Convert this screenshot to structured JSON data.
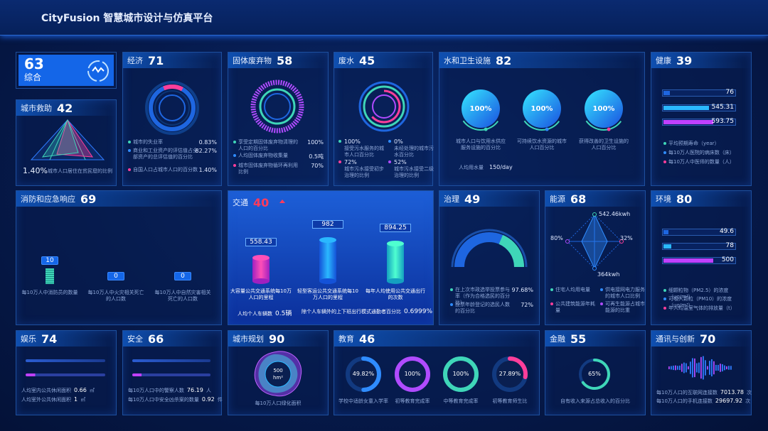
{
  "header": {
    "title": "CityFusion 智慧城市设计与仿真平台"
  },
  "overall": {
    "score": 63,
    "label": "综合"
  },
  "rescue": {
    "title": "城市救助",
    "score": 42,
    "value": "1.40%",
    "caption": "城市人口居住在贫民窟的比例"
  },
  "economy": {
    "title": "经济",
    "score": 71,
    "items": [
      {
        "label": "城市的失业率",
        "value": "0.83%"
      },
      {
        "label": "商业和工业资产的评估值占全部资产的总评估值的百分比",
        "value": "82.27%"
      },
      {
        "label": "自国人口占城市人口的百分数",
        "value": "1.40%"
      }
    ]
  },
  "solid_waste": {
    "title": "固体废弃物",
    "score": 58,
    "items": [
      {
        "label": "享受定期固体废弃物清理的人口的百分比",
        "value": "100%"
      },
      {
        "label": "人均固体废弃物收集量",
        "value": "0.5吨"
      },
      {
        "label": "城市固体废弃物循环再利用比例",
        "value": "70%"
      }
    ]
  },
  "wastewater": {
    "title": "废水",
    "score": 45,
    "items": [
      {
        "value": "100%",
        "label": "接受污水服务的城市人口百分比"
      },
      {
        "value": "0%",
        "label": "未经处理的城市污水百分比"
      },
      {
        "value": "72%",
        "label": "城市污水接受初步治理的比例"
      },
      {
        "value": "52%",
        "label": "城市污水接受二级治理的比例"
      }
    ]
  },
  "water": {
    "title": "水和卫生设施",
    "score": 82,
    "rings": [
      {
        "value": "100%",
        "label": "城市人口与饮用水供应服务设施的百分比"
      },
      {
        "value": "100%",
        "label": "可持续饮水资源的城市人口百分比"
      },
      {
        "value": "100%",
        "label": "获得改善的卫生设施的人口百分比"
      }
    ],
    "per_capita": {
      "label": "人均用水量",
      "value": "150/day"
    }
  },
  "health": {
    "title": "健康",
    "score": 39,
    "bars": [
      76,
      545.31,
      593.75
    ],
    "legend": [
      "平均预期寿命（year）",
      "每10万人医院的病床数（床）",
      "每10万人中医师的数量（人）"
    ]
  },
  "fire": {
    "title": "消防和应急响应",
    "score": 69,
    "bars": [
      {
        "value": 10,
        "label": "每10万人中消防员的数量"
      },
      {
        "value": 0,
        "label": "每10万人中火灾相关死亡的人口数"
      },
      {
        "value": 0,
        "label": "每10万人中自然灾害相关死亡的人口数"
      }
    ]
  },
  "traffic": {
    "title": "交通",
    "score": 40,
    "columns": [
      {
        "value": 558.43,
        "label": "大容量公共交通系统每10万人口的里程"
      },
      {
        "value": 982,
        "label": "轻型客运公共交通系统每10万人口的里程"
      },
      {
        "value": 894.25,
        "label": "每年人均使用公共交通出行的次数"
      }
    ],
    "footer": [
      {
        "label": "人均个人车辆数",
        "value": "0.5辆"
      },
      {
        "label": "除个人车辆外的上下班出行模式通勤者百分比",
        "value": "0.6999%"
      }
    ]
  },
  "governance": {
    "title": "治理",
    "score": 49,
    "items": [
      {
        "label": "在上次市政选举投票参与率（作为合格选民的百分比）",
        "value": "97.68%"
      },
      {
        "label": "投票年龄登记的选民人数的百分比",
        "value": "72%"
      }
    ]
  },
  "energy": {
    "title": "能源",
    "score": 68,
    "radar": [
      "542.46kwh",
      "32%",
      "364kwh",
      "80%"
    ],
    "legend": [
      "住宅人均用电量",
      "供电接网电力服务的城市人口比例",
      "公共建筑能源年耗量",
      "可再生能源占城市能源的比重"
    ]
  },
  "environment": {
    "title": "环境",
    "score": 80,
    "bars": [
      49.6,
      78,
      500
    ],
    "legend": [
      "细颗粒物（PM2.5）的浓度（μg/m³）",
      "可吸入颗粒（PM10）的浓度（μg/m³）",
      "年人均温室气体的排放量（t）"
    ]
  },
  "leisure": {
    "title": "娱乐",
    "score": 74,
    "items": [
      {
        "label": "人均室内公共休闲面积",
        "value": 0.66,
        "unit": "㎡"
      },
      {
        "label": "人均室外公共休闲面积",
        "value": 1,
        "unit": "㎡"
      }
    ]
  },
  "safety": {
    "title": "安全",
    "score": 66,
    "items": [
      {
        "label": "每10万人口中的警察人数",
        "value": 76.19,
        "unit": "人"
      },
      {
        "label": "每10万人口中安全凶杀案的数量",
        "value": 0.92,
        "unit": "件"
      }
    ]
  },
  "planning": {
    "title": "城市规划",
    "score": 90,
    "value": "500",
    "unit": "hm²",
    "caption": "每10万人口绿化面积"
  },
  "education": {
    "title": "教育",
    "score": 46,
    "rings": [
      {
        "value": 49.82,
        "label": "49.82%",
        "caption": "学校中适龄女童入学率"
      },
      {
        "value": 100,
        "label": "100%",
        "caption": "初等教育完成率"
      },
      {
        "value": 100,
        "label": "100%",
        "caption": "中等教育完成率"
      },
      {
        "value": 27.89,
        "label": "27.89%",
        "caption": "初等教育师生比"
      }
    ]
  },
  "finance": {
    "title": "金融",
    "score": 55,
    "ring": {
      "value": 65,
      "label": "65%"
    },
    "caption": "自有收入来源占总收入的百分比"
  },
  "communication": {
    "title": "通讯与创新",
    "score": 70,
    "items": [
      {
        "label": "每10万人口的互联网连接数",
        "value": 7013.78,
        "unit": "次"
      },
      {
        "label": "每10万人口的手机连接数",
        "value": 29697.92,
        "unit": "次"
      }
    ]
  }
}
